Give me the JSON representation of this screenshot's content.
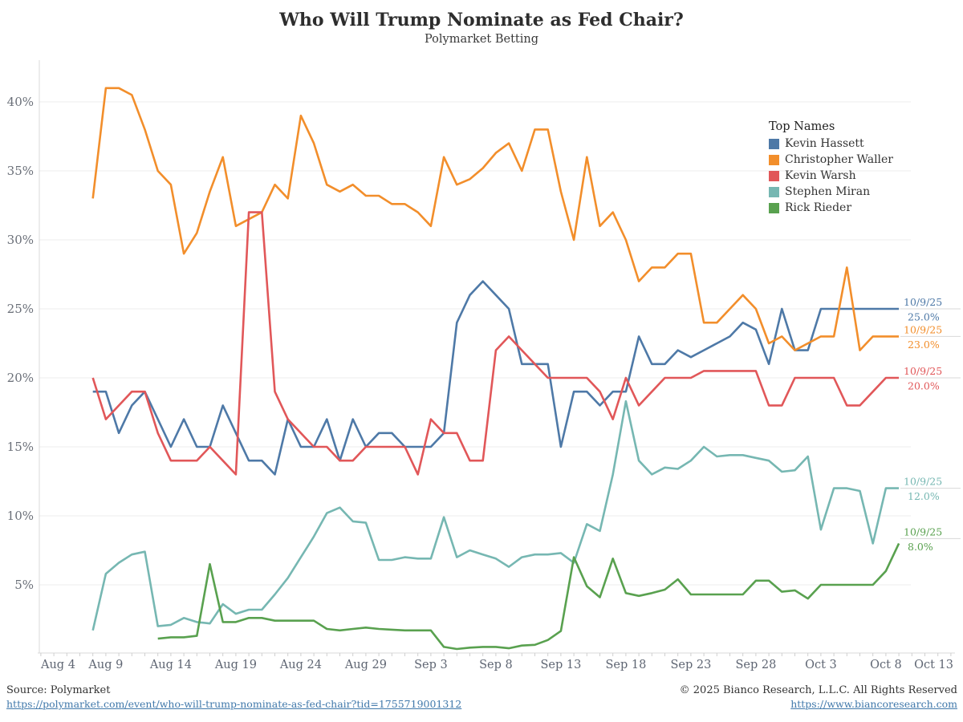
{
  "title": "Who Will Trump Nominate as Fed Chair?",
  "subtitle": "Polymarket Betting",
  "legend": {
    "title": "Top Names"
  },
  "footer": {
    "source_label": "Source: Polymarket",
    "source_url": "https://polymarket.com/event/who-will-trump-nominate-as-fed-chair?tid=1755719001312",
    "copyright": "© 2025 Bianco Research, L.L.C. All Rights Reserved",
    "site_url": "https://www.biancoresearch.com"
  },
  "chart_data": {
    "type": "line",
    "title": "Who Will Trump Nominate as Fed Chair?",
    "subtitle": "Polymarket Betting",
    "grid": true,
    "legend_position": "upper right",
    "ylim": [
      0,
      42.5
    ],
    "y_axis": {
      "tick_labels": [
        "5%",
        "10%",
        "15%",
        "20%",
        "25%",
        "30%",
        "35%",
        "40%"
      ],
      "tick_values": [
        5,
        10,
        15,
        20,
        25,
        30,
        35,
        40
      ]
    },
    "x_axis": {
      "tick_labels": [
        "Aug 4",
        "Aug 9",
        "Aug 14",
        "Aug 19",
        "Aug 24",
        "Aug 29",
        "Sep 3",
        "Sep 8",
        "Sep 13",
        "Sep 18",
        "Sep 23",
        "Sep 28",
        "Oct 3",
        "Oct 8",
        "Oct 13"
      ]
    },
    "dates": [
      "Aug 8",
      "Aug 9",
      "Aug 10",
      "Aug 11",
      "Aug 12",
      "Aug 13",
      "Aug 14",
      "Aug 15",
      "Aug 16",
      "Aug 17",
      "Aug 18",
      "Aug 19",
      "Aug 20",
      "Aug 21",
      "Aug 22",
      "Aug 23",
      "Aug 24",
      "Aug 25",
      "Aug 26",
      "Aug 27",
      "Aug 28",
      "Aug 29",
      "Aug 30",
      "Aug 31",
      "Sep 1",
      "Sep 2",
      "Sep 3",
      "Sep 4",
      "Sep 5",
      "Sep 6",
      "Sep 7",
      "Sep 8",
      "Sep 9",
      "Sep 10",
      "Sep 11",
      "Sep 12",
      "Sep 13",
      "Sep 14",
      "Sep 15",
      "Sep 16",
      "Sep 17",
      "Sep 18",
      "Sep 19",
      "Sep 20",
      "Sep 21",
      "Sep 22",
      "Sep 23",
      "Sep 24",
      "Sep 25",
      "Sep 26",
      "Sep 27",
      "Sep 28",
      "Sep 29",
      "Sep 30",
      "Oct 1",
      "Oct 2",
      "Oct 3",
      "Oct 4",
      "Oct 5",
      "Oct 6",
      "Oct 7",
      "Oct 8",
      "Oct 9"
    ],
    "series": [
      {
        "name": "Kevin Hassett",
        "color": "#4e79a7",
        "annotation": {
          "date": "10/9/25",
          "label": "25.0%"
        },
        "values": [
          19,
          19,
          16,
          18,
          19,
          17,
          15,
          17,
          15,
          15,
          18,
          16,
          14,
          14,
          13,
          17,
          15,
          15,
          17,
          14,
          17,
          15,
          16,
          16,
          15,
          15,
          15,
          16,
          24,
          26,
          27,
          26,
          25,
          21,
          21,
          21,
          15,
          19,
          19,
          18,
          19,
          19,
          23,
          21,
          21,
          22,
          21.5,
          22,
          22.5,
          23,
          24,
          23.5,
          21,
          25,
          22,
          22,
          25,
          25,
          25,
          25,
          25,
          25,
          25
        ]
      },
      {
        "name": "Christopher Waller",
        "color": "#f28e2b",
        "annotation": {
          "date": "10/9/25",
          "label": "23.0%"
        },
        "values": [
          33,
          41,
          41,
          40.5,
          38,
          35,
          34,
          29,
          30.5,
          33.5,
          36,
          31,
          31.5,
          32,
          34,
          33,
          39,
          37,
          34,
          33.5,
          34,
          33.2,
          33.2,
          32.6,
          32.6,
          32,
          31,
          36,
          34,
          34.4,
          35.2,
          36.3,
          37,
          35,
          38,
          38,
          33.5,
          30,
          36,
          31,
          32,
          30,
          27,
          28,
          28,
          29,
          29,
          24,
          24,
          25,
          26,
          25,
          22.5,
          23,
          22,
          22.5,
          23,
          23,
          28,
          22,
          23,
          23,
          23
        ]
      },
      {
        "name": "Kevin Warsh",
        "color": "#e15759",
        "annotation": {
          "date": "10/9/25",
          "label": "20.0%"
        },
        "values": [
          20,
          17,
          18,
          19,
          19,
          16,
          14,
          14,
          14,
          15,
          14,
          13,
          32,
          32,
          19,
          17,
          16,
          15,
          15,
          14,
          14,
          15,
          15,
          15,
          15,
          13,
          17,
          16,
          16,
          14,
          14,
          22,
          23,
          22,
          21,
          20,
          20,
          20,
          20,
          19,
          17,
          20,
          18,
          19,
          20,
          20,
          20,
          20.5,
          20.5,
          20.5,
          20.5,
          20.5,
          18,
          18,
          20,
          20,
          20,
          20,
          18,
          18,
          19,
          20,
          20
        ]
      },
      {
        "name": "Stephen Miran",
        "color": "#76b7b2",
        "annotation": {
          "date": "10/9/25",
          "label": "12.0%"
        },
        "values": [
          1.7,
          5.8,
          6.6,
          7.2,
          7.4,
          2,
          2.1,
          2.6,
          2.3,
          2.2,
          3.6,
          2.9,
          3.2,
          3.2,
          4.3,
          5.5,
          7,
          8.5,
          10.2,
          10.6,
          9.6,
          9.5,
          6.8,
          6.8,
          7,
          6.9,
          6.9,
          9.9,
          7,
          7.5,
          7.2,
          6.9,
          6.3,
          7,
          7.2,
          7.2,
          7.3,
          6.6,
          9.4,
          8.9,
          13,
          18.3,
          14,
          13,
          13.5,
          13.4,
          14,
          15,
          14.3,
          14.4,
          14.4,
          14.2,
          14,
          13.2,
          13.3,
          14.3,
          9,
          12,
          12,
          11.8,
          8,
          12,
          12
        ]
      },
      {
        "name": "Rick Rieder",
        "color": "#59a14f",
        "annotation": {
          "date": "10/9/25",
          "label": "8.0%"
        },
        "values": [
          null,
          null,
          null,
          null,
          null,
          1.1,
          1.2,
          1.2,
          1.3,
          6.5,
          2.3,
          2.3,
          2.6,
          2.6,
          2.4,
          2.4,
          2.4,
          2.4,
          1.8,
          1.7,
          1.8,
          1.9,
          1.8,
          1.75,
          1.7,
          1.7,
          1.7,
          0.5,
          0.35,
          0.45,
          0.5,
          0.5,
          0.4,
          0.6,
          0.65,
          1,
          1.65,
          7,
          4.9,
          4.1,
          6.9,
          4.4,
          4.2,
          4.4,
          4.65,
          5.4,
          4.3,
          4.3,
          4.3,
          4.3,
          4.3,
          5.3,
          5.3,
          4.5,
          4.6,
          4,
          5,
          5,
          5,
          5,
          5,
          6,
          8
        ]
      }
    ]
  }
}
